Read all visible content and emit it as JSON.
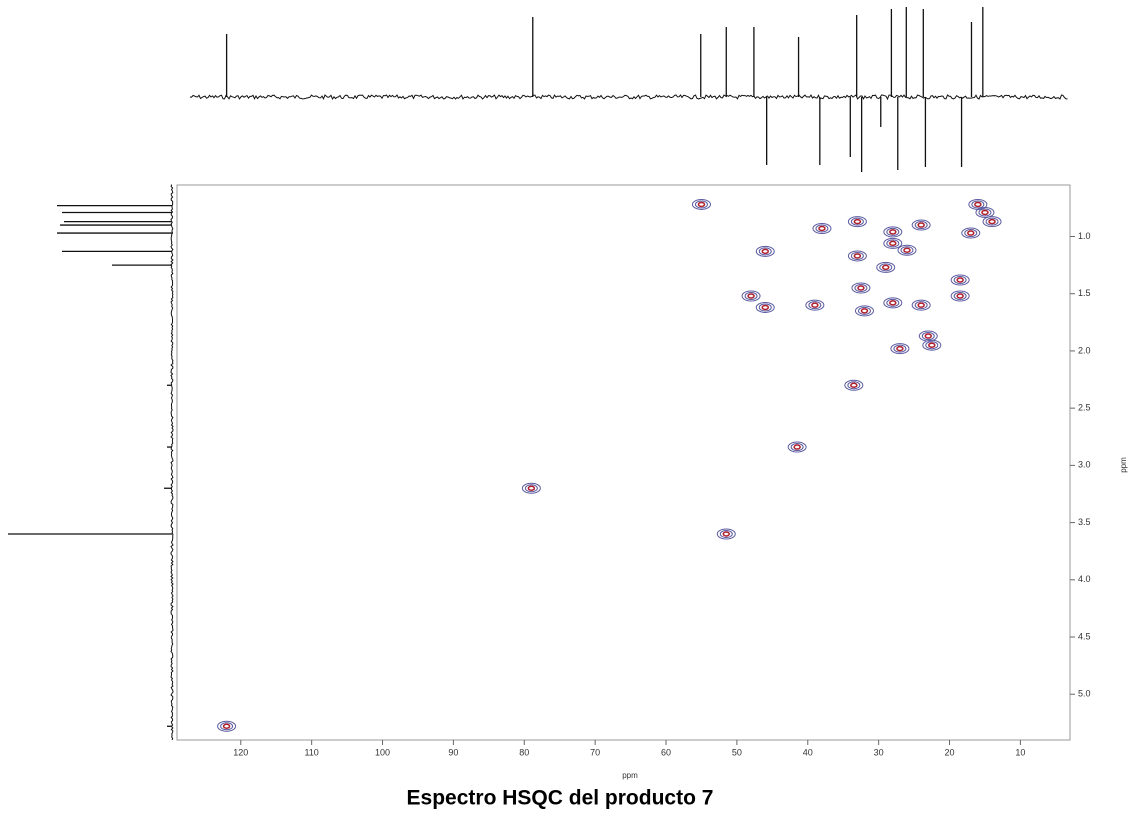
{
  "chart_data": {
    "type": "hsqc",
    "title": "Espectro HSQC del producto 7",
    "xlabel": "ppm",
    "ylabel": "ppm",
    "xlim": [
      129,
      3
    ],
    "ylim": [
      0.55,
      5.4
    ],
    "xticks": [
      120,
      110,
      100,
      90,
      80,
      70,
      60,
      50,
      40,
      30,
      20,
      10
    ],
    "yticks": [
      {
        "value": 1,
        "label": "1.0"
      },
      1.5,
      {
        "value": 2,
        "label": "2.0"
      },
      2.5,
      {
        "value": 3,
        "label": "3.0"
      },
      3.5,
      {
        "value": 4,
        "label": "4.0"
      },
      4.5,
      {
        "value": 5,
        "label": "5.0"
      }
    ],
    "peak_color": "#5a5aa0",
    "peak_core_color": "#b0202c",
    "trace_color": "#111111",
    "peaks": {
      "x": [
        122,
        79,
        51.5,
        41.5,
        33.5,
        55,
        48,
        46,
        46,
        39,
        33,
        32.5,
        32,
        29,
        28,
        24,
        23,
        22.5,
        27,
        18.5,
        18.5,
        16,
        15,
        33,
        24,
        28,
        14,
        26,
        28,
        38,
        17
      ],
      "y": [
        5.28,
        3.2,
        3.6,
        2.84,
        2.3,
        0.72,
        1.52,
        1.13,
        1.62,
        1.6,
        1.17,
        1.45,
        1.65,
        1.27,
        1.58,
        1.6,
        1.87,
        1.95,
        1.98,
        1.38,
        1.52,
        0.72,
        0.79,
        0.87,
        0.9,
        0.96,
        0.87,
        1.12,
        1.06,
        0.93,
        0.97
      ]
    },
    "f2_projection": {
      "x": [
        122,
        78.8,
        55.1,
        51.5,
        47.6,
        45.8,
        41.3,
        38.3,
        34,
        33.1,
        32.4,
        29.7,
        28.2,
        27.3,
        26.1,
        23.7,
        23.4,
        18.3,
        16.9,
        15.3
      ],
      "intensity": [
        63,
        80,
        63,
        70,
        70,
        -68,
        60,
        -68,
        -60,
        82,
        -75,
        -30,
        88,
        -73,
        90,
        88,
        -70,
        -70,
        75,
        90
      ]
    },
    "f1_projection": {
      "y": [
        0.73,
        0.79,
        0.87,
        0.9,
        0.97,
        1.13,
        1.25,
        2.3,
        2.84,
        3.2,
        3.6,
        5.28
      ],
      "intensity": [
        115,
        110,
        108,
        112,
        115,
        110,
        60,
        5,
        5,
        8,
        164,
        5
      ]
    }
  }
}
